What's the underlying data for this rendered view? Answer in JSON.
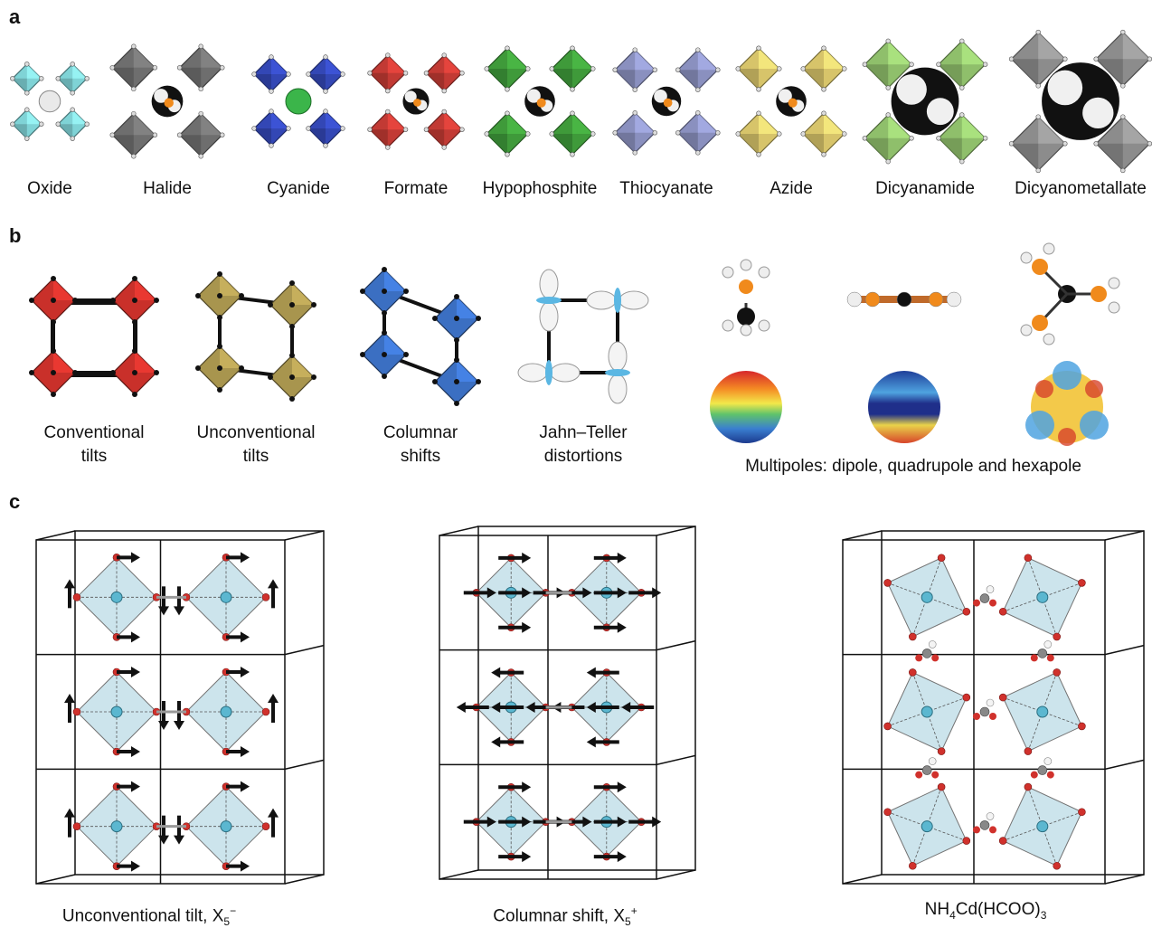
{
  "panels": {
    "a": {
      "label": "a",
      "items": [
        {
          "name": "Oxide",
          "color": "#7fd3d6"
        },
        {
          "name": "Halide",
          "color": "#6e6e6e"
        },
        {
          "name": "Cyanide",
          "color": "#3347b5"
        },
        {
          "name": "Formate",
          "color": "#c23a34"
        },
        {
          "name": "Hypophosphite",
          "color": "#3f9a3a"
        },
        {
          "name": "Thiocyanate",
          "color": "#8a90bf"
        },
        {
          "name": "Azide",
          "color": "#d7c46a"
        },
        {
          "name": "Dicyanamide",
          "color": "#8fbf6b"
        },
        {
          "name": "Dicyanometallate",
          "color": "#8c8c8c"
        }
      ]
    },
    "b": {
      "label": "b",
      "distortions": [
        {
          "line1": "Conventional",
          "line2": "tilts",
          "color": "#c9302a"
        },
        {
          "line1": "Unconventional",
          "line2": "tilts",
          "color": "#a8954e"
        },
        {
          "line1": "Columnar",
          "line2": "shifts",
          "color": "#3b6fc2"
        },
        {
          "line1": "Jahn–Teller",
          "line2": "distortions",
          "color": "#5bb7e3"
        }
      ],
      "multipoles_caption": "Multipoles: dipole, quadrupole and hexapole"
    },
    "c": {
      "label": "c",
      "structures": [
        {
          "caption_main": "Unconventional tilt, X",
          "caption_sub": "5",
          "caption_sup": "−"
        },
        {
          "caption_main": "Columnar shift, X",
          "caption_sub": "5",
          "caption_sup": "+"
        },
        {
          "caption_pre": "NH",
          "caption_sub": "4",
          "caption_post": "Cd(HCOO)",
          "caption_sub2": "3"
        }
      ]
    }
  }
}
